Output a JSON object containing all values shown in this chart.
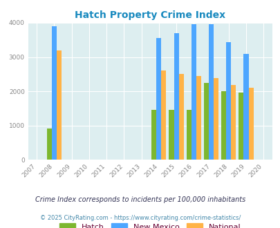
{
  "title": "Hatch Property Crime Index",
  "years": [
    2007,
    2008,
    2009,
    2010,
    2011,
    2012,
    2013,
    2014,
    2015,
    2016,
    2017,
    2018,
    2019,
    2020
  ],
  "bar_years": [
    2008,
    2014,
    2015,
    2016,
    2017,
    2018,
    2019
  ],
  "hatch": [
    900,
    1450,
    1450,
    1450,
    2250,
    2000,
    1950
  ],
  "new_mexico": [
    3900,
    3550,
    3700,
    3950,
    3950,
    3425,
    3100
  ],
  "national": [
    3200,
    2600,
    2500,
    2450,
    2375,
    2175,
    2100
  ],
  "hatch_color": "#7db72f",
  "nm_color": "#4da6ff",
  "national_color": "#ffb347",
  "bg_color": "#ddeef0",
  "title_color": "#1a8abf",
  "ylabel_max": 4000,
  "yticks": [
    0,
    1000,
    2000,
    3000,
    4000
  ],
  "bar_width": 0.28,
  "legend_labels": [
    "Hatch",
    "New Mexico",
    "National"
  ],
  "legend_text_color": "#660033",
  "footnote1": "Crime Index corresponds to incidents per 100,000 inhabitants",
  "footnote2": "© 2025 CityRating.com - https://www.cityrating.com/crime-statistics/",
  "footnote1_color": "#333355",
  "footnote2_color": "#4488aa"
}
